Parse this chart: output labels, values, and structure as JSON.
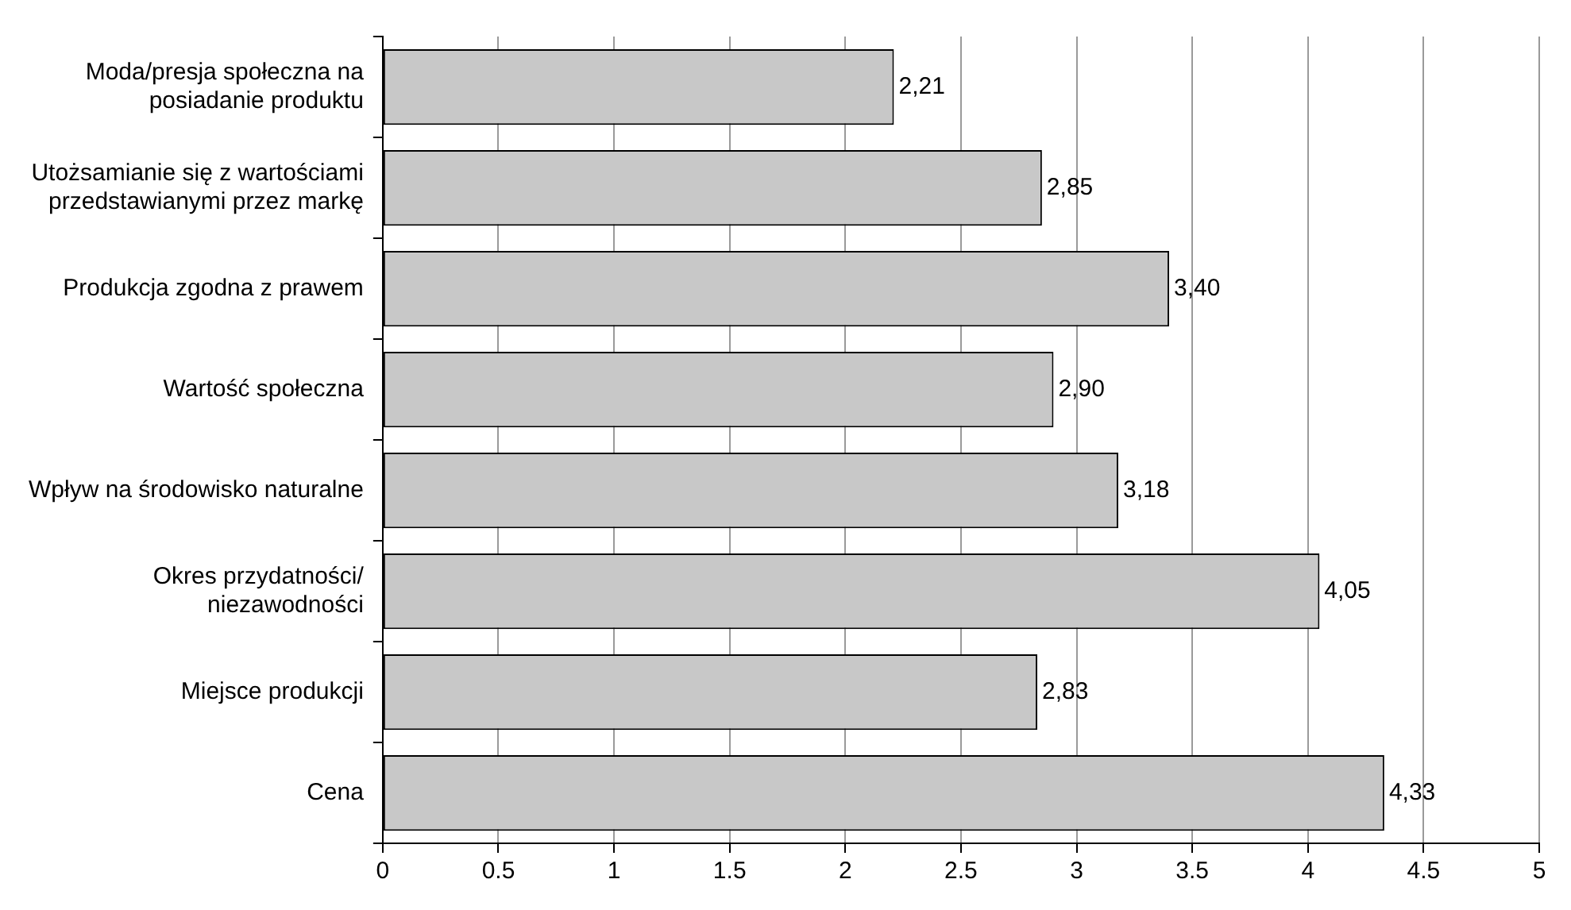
{
  "chart_data": {
    "type": "bar",
    "orientation": "horizontal",
    "categories": [
      "Moda/presja społeczna na posiadanie produktu",
      "Utożsamianie się z wartościami przedstawianymi przez markę",
      "Produkcja zgodna z prawem",
      "Wartość społeczna",
      "Wpływ na środowisko naturalne",
      "Okres przydatności/ niezawodności",
      "Miejsce produkcji",
      "Cena"
    ],
    "values": [
      2.21,
      2.85,
      3.4,
      2.9,
      3.18,
      4.05,
      2.83,
      4.33
    ],
    "value_labels": [
      "2,21",
      "2,85",
      "3,40",
      "2,90",
      "3,18",
      "4,05",
      "2,83",
      "4,33"
    ],
    "color": "#c8c8c8",
    "xlim": [
      0,
      5
    ],
    "xticks": [
      0,
      0.5,
      1,
      1.5,
      2,
      2.5,
      3,
      3.5,
      4,
      4.5,
      5
    ],
    "grid": "x"
  }
}
